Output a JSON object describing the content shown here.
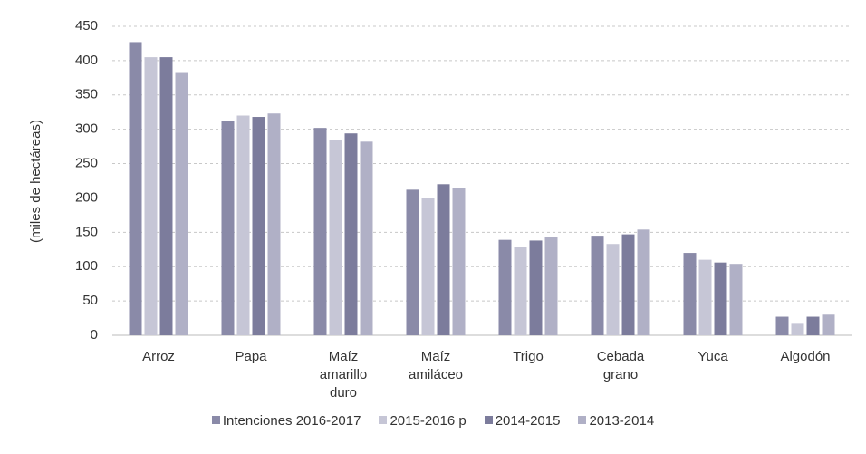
{
  "chart_data": {
    "type": "bar",
    "y_label": "(miles de hectáreas)",
    "categories": [
      "Arroz",
      "Papa",
      "Maíz amarillo duro",
      "Maíz amiláceo",
      "Trigo",
      "Cebada grano",
      "Yuca",
      "Algodón"
    ],
    "series": [
      {
        "name": "Intenciones 2016-2017",
        "color": "#8a8aa8",
        "values": [
          427,
          312,
          302,
          212,
          139,
          145,
          120,
          27
        ]
      },
      {
        "name": "2015-2016 p",
        "color": "#c6c6d6",
        "values": [
          405,
          320,
          285,
          200,
          128,
          133,
          110,
          18
        ]
      },
      {
        "name": "2014-2015",
        "color": "#7c7c9c",
        "values": [
          405,
          318,
          294,
          220,
          138,
          147,
          106,
          27
        ]
      },
      {
        "name": "2013-2014",
        "color": "#b0b0c6",
        "values": [
          382,
          323,
          282,
          215,
          143,
          154,
          104,
          30
        ]
      }
    ],
    "ylim": [
      0,
      450
    ],
    "yticks": [
      0,
      50,
      100,
      150,
      200,
      250,
      300,
      350,
      400,
      450
    ],
    "grid": true
  }
}
